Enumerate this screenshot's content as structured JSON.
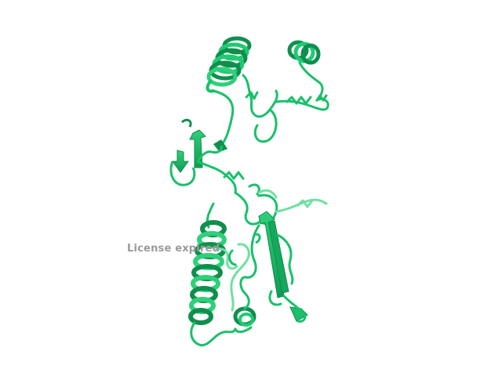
{
  "watermark": {
    "text": "License expired"
  },
  "colors": {
    "background": "#ffffff",
    "ribbon": "#19c06a",
    "ribbon_dark": "#0f8f4c",
    "ribbon_light": "#6fe0a2",
    "watermark": "#9a9a9a"
  },
  "icons": {
    "structure": "protein-cartoon-ribbon"
  }
}
